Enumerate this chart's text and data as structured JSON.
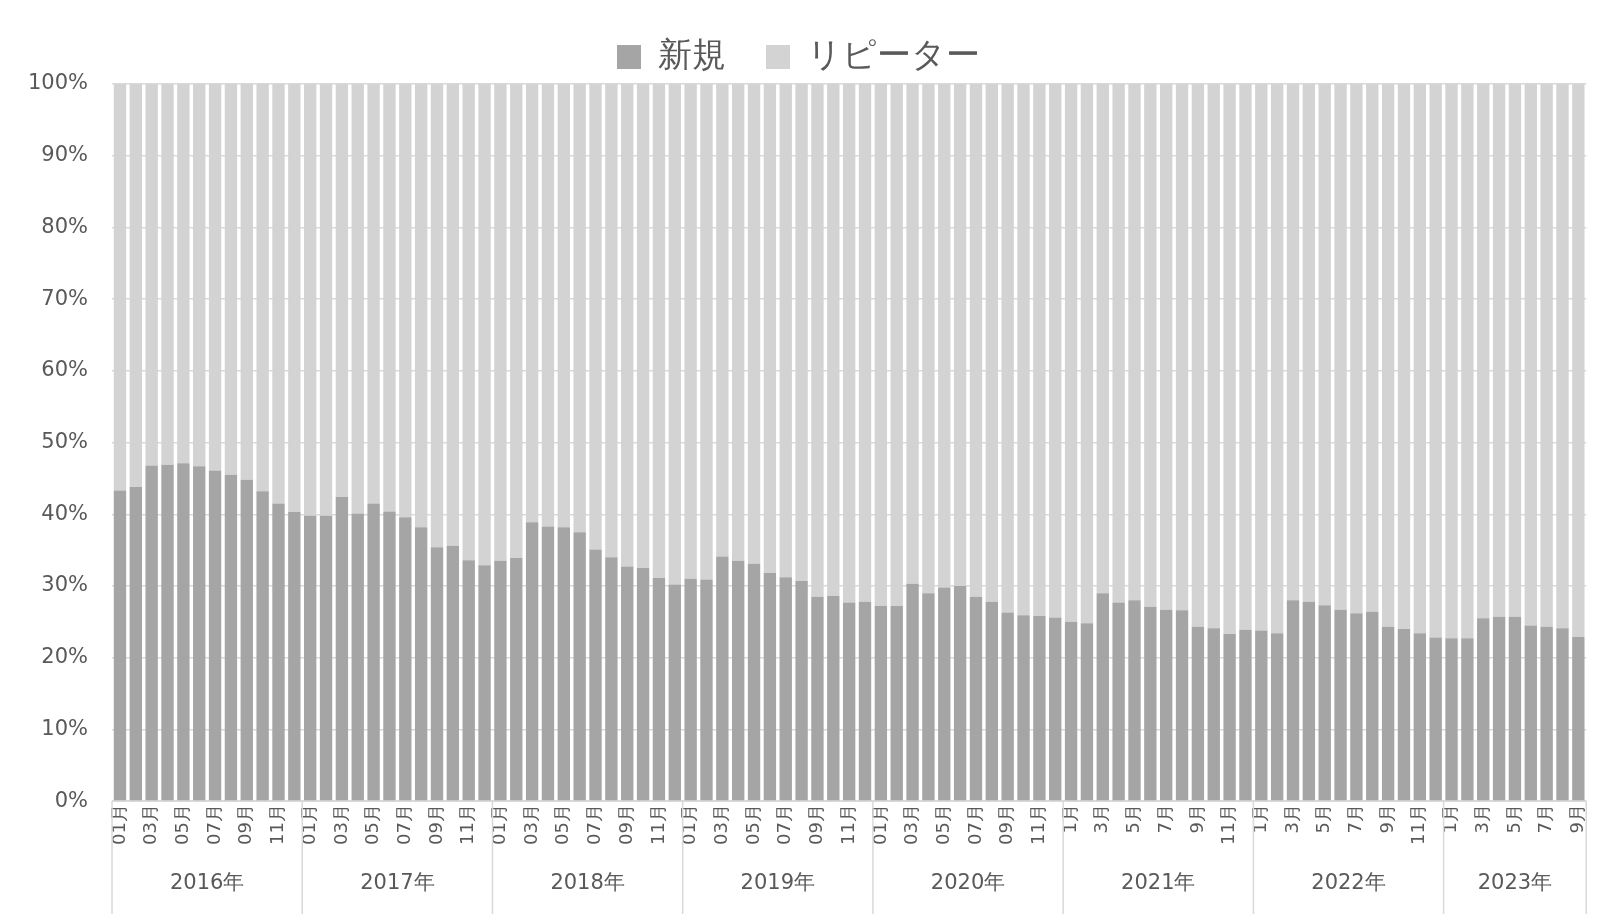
{
  "chart_data": {
    "type": "bar",
    "stacked": true,
    "legend": "top",
    "grid": "y",
    "categories": [
      "01月",
      null,
      "03月",
      null,
      "05月",
      null,
      "07月",
      null,
      "09月",
      null,
      "11月",
      null,
      "01月",
      null,
      "03月",
      null,
      "05月",
      null,
      "07月",
      null,
      "09月",
      null,
      "11月",
      null,
      "01月",
      null,
      "03月",
      null,
      "05月",
      null,
      "07月",
      null,
      "09月",
      null,
      "11月",
      null,
      "01月",
      null,
      "03月",
      null,
      "05月",
      null,
      "07月",
      null,
      "09月",
      null,
      "11月",
      null,
      "01月",
      null,
      "03月",
      null,
      "05月",
      null,
      "07月",
      null,
      "09月",
      null,
      "11月",
      null,
      "1月",
      null,
      "3月",
      null,
      "5月",
      null,
      "7月",
      null,
      "9月",
      null,
      "11月",
      null,
      "1月",
      null,
      "3月",
      null,
      "5月",
      null,
      "7月",
      null,
      "9月",
      null,
      "11月",
      null,
      "1月",
      null,
      "3月",
      null,
      "5月",
      null,
      "7月",
      null,
      "9月"
    ],
    "annotations": [
      "2016年",
      "2017年",
      "2018年",
      "2019年",
      "2020年",
      "2021年",
      "2022年",
      "2023年"
    ],
    "ylim": [
      0,
      100
    ],
    "yticks": [
      {
        "value": 0,
        "label": "0%"
      },
      {
        "value": 10,
        "label": "10%"
      },
      {
        "value": 20,
        "label": "20%"
      },
      {
        "value": 30,
        "label": "30%"
      },
      {
        "value": 40,
        "label": "40%"
      },
      {
        "value": 50,
        "label": "50%"
      },
      {
        "value": 60,
        "label": "60%"
      },
      {
        "value": 70,
        "label": "70%"
      },
      {
        "value": 80,
        "label": "80%"
      },
      {
        "value": 90,
        "label": "90%"
      },
      {
        "value": 100,
        "label": "100%"
      }
    ],
    "series": [
      {
        "name": "新規",
        "color": "#a5a5a5",
        "values": [
          43.3,
          43.8,
          46.8,
          46.9,
          47.1,
          46.7,
          46.1,
          45.5,
          44.8,
          43.2,
          41.5,
          40.3,
          39.8,
          39.8,
          42.4,
          40.1,
          41.5,
          40.4,
          39.6,
          38.2,
          35.4,
          35.6,
          33.6,
          32.9,
          33.5,
          33.9,
          38.9,
          38.3,
          38.2,
          37.5,
          35.1,
          34.0,
          32.7,
          32.5,
          31.1,
          30.2,
          31.0,
          30.9,
          34.1,
          33.5,
          33.1,
          31.8,
          31.2,
          30.7,
          28.5,
          28.6,
          27.7,
          27.8,
          27.2,
          27.2,
          30.3,
          29.0,
          29.8,
          30.0,
          28.5,
          27.8,
          26.3,
          25.9,
          25.8,
          25.6,
          25.0,
          24.8,
          29.0,
          27.7,
          28.0,
          27.1,
          26.7,
          26.6,
          24.3,
          24.1,
          23.3,
          23.9,
          23.8,
          23.4,
          28.0,
          27.8,
          27.3,
          26.7,
          26.2,
          26.4,
          24.3,
          24.0,
          23.4,
          22.8,
          22.7,
          22.7,
          25.5,
          25.7,
          25.7,
          24.5,
          24.3,
          24.1,
          22.9
        ]
      },
      {
        "name": "リピーター",
        "color": "#d3d3d3",
        "values": [
          56.7,
          56.2,
          53.2,
          53.1,
          52.9,
          53.3,
          53.9,
          54.5,
          55.2,
          56.8,
          58.5,
          59.7,
          60.2,
          60.2,
          57.6,
          59.9,
          58.5,
          59.6,
          60.4,
          61.8,
          64.6,
          64.4,
          66.4,
          67.1,
          66.5,
          66.1,
          61.1,
          61.7,
          61.8,
          62.5,
          64.9,
          66.0,
          67.3,
          67.5,
          68.9,
          69.8,
          69.0,
          69.1,
          65.9,
          66.5,
          66.9,
          68.2,
          68.8,
          69.3,
          71.5,
          71.4,
          72.3,
          72.2,
          72.8,
          72.8,
          69.7,
          71.0,
          70.2,
          70.0,
          71.5,
          72.2,
          73.7,
          74.1,
          74.2,
          74.4,
          75.0,
          75.2,
          71.0,
          72.3,
          72.0,
          72.9,
          73.3,
          73.4,
          75.7,
          75.9,
          76.7,
          76.1,
          76.2,
          76.6,
          72.0,
          72.2,
          72.7,
          73.3,
          73.8,
          73.6,
          75.7,
          76.0,
          76.6,
          77.2,
          77.3,
          77.3,
          74.5,
          74.3,
          74.3,
          75.5,
          75.7,
          75.9,
          77.1
        ]
      }
    ]
  }
}
